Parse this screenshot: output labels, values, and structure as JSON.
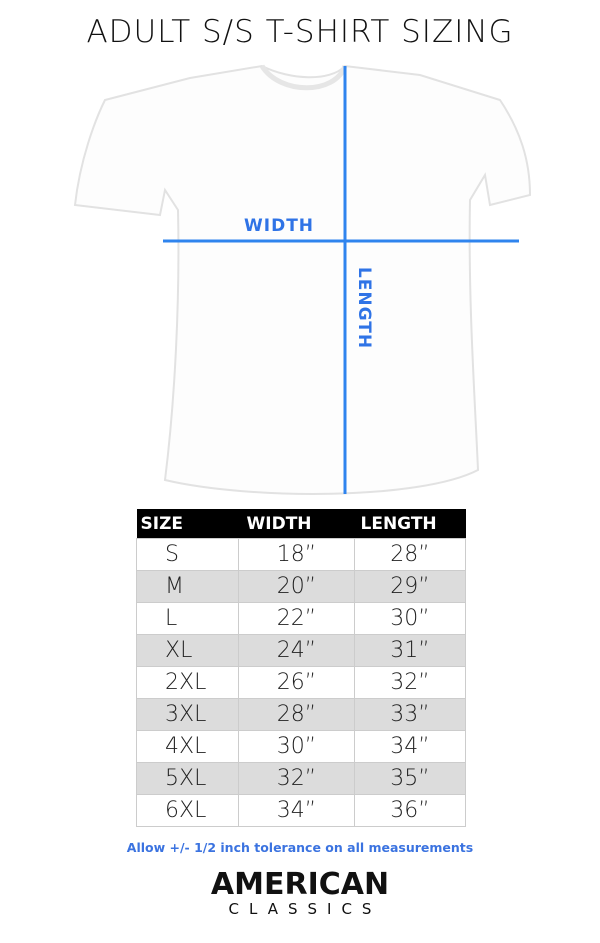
{
  "title": "ADULT S/S T-SHIRT SIZING",
  "diagram": {
    "width_label": "WIDTH",
    "length_label": "LENGTH",
    "line_color": "#2f84ee"
  },
  "table": {
    "headers": [
      "SIZE",
      "WIDTH",
      "LENGTH"
    ],
    "rows": [
      [
        "S",
        "18”",
        "28”"
      ],
      [
        "M",
        "20”",
        "29”"
      ],
      [
        "L",
        "22”",
        "30”"
      ],
      [
        "XL",
        "24”",
        "31”"
      ],
      [
        "2XL",
        "26”",
        "32”"
      ],
      [
        "3XL",
        "28”",
        "33”"
      ],
      [
        "4XL",
        "30”",
        "34”"
      ],
      [
        "5XL",
        "32”",
        "35”"
      ],
      [
        "6XL",
        "34”",
        "36”"
      ]
    ]
  },
  "note": "Allow +/- 1/2 inch tolerance on all measurements",
  "logo": {
    "line1": "AMERICAN",
    "line2": "CLASSICS"
  }
}
